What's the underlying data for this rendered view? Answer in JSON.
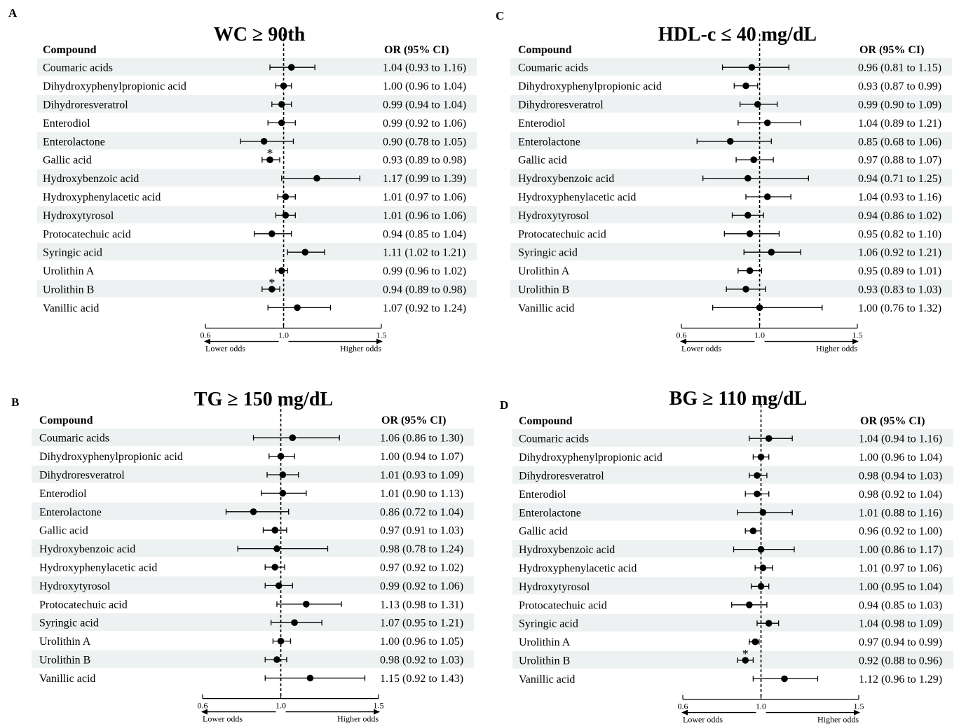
{
  "compound_header": "Compound",
  "or_header": "OR (95% CI)",
  "axis": {
    "ticks": [
      "0.6",
      "1.0",
      "1.5"
    ],
    "tick_values": [
      0.6,
      1.0,
      1.5
    ],
    "reference": 1.0,
    "lower_label": "Lower odds",
    "higher_label": "Higher odds"
  },
  "colors": {
    "stripe": "#eef1f1",
    "marker": "#000000"
  },
  "chart_data": [
    {
      "type": "forest",
      "panel_letter": "A",
      "title": "WC ≥ 90th",
      "xlim": [
        0.6,
        1.5
      ],
      "rows": [
        {
          "label": "Coumaric acids",
          "or": 1.04,
          "lo": 0.93,
          "hi": 1.16,
          "ci_text": "1.04 (0.93 to 1.16)",
          "significant": false
        },
        {
          "label": "Dihydroxyphenylpropionic acid",
          "or": 1.0,
          "lo": 0.96,
          "hi": 1.04,
          "ci_text": "1.00 (0.96 to 1.04)",
          "significant": false
        },
        {
          "label": "Dihydroresveratrol",
          "or": 0.99,
          "lo": 0.94,
          "hi": 1.04,
          "ci_text": "0.99 (0.94 to 1.04)",
          "significant": false
        },
        {
          "label": "Enterodiol",
          "or": 0.99,
          "lo": 0.92,
          "hi": 1.06,
          "ci_text": "0.99 (0.92 to 1.06)",
          "significant": false
        },
        {
          "label": "Enterolactone",
          "or": 0.9,
          "lo": 0.78,
          "hi": 1.05,
          "ci_text": "0.90 (0.78 to 1.05)",
          "significant": false
        },
        {
          "label": "Gallic acid",
          "or": 0.93,
          "lo": 0.89,
          "hi": 0.98,
          "ci_text": "0.93 (0.89 to 0.98)",
          "significant": true
        },
        {
          "label": "Hydroxybenzoic acid",
          "or": 1.17,
          "lo": 0.99,
          "hi": 1.39,
          "ci_text": "1.17 (0.99 to 1.39)",
          "significant": false
        },
        {
          "label": "Hydroxyphenylacetic acid",
          "or": 1.01,
          "lo": 0.97,
          "hi": 1.06,
          "ci_text": "1.01 (0.97 to 1.06)",
          "significant": false
        },
        {
          "label": "Hydroxytyrosol",
          "or": 1.01,
          "lo": 0.96,
          "hi": 1.06,
          "ci_text": "1.01 (0.96 to 1.06)",
          "significant": false
        },
        {
          "label": "Protocatechuic acid",
          "or": 0.94,
          "lo": 0.85,
          "hi": 1.04,
          "ci_text": "0.94 (0.85 to 1.04)",
          "significant": false
        },
        {
          "label": "Syringic acid",
          "or": 1.11,
          "lo": 1.02,
          "hi": 1.21,
          "ci_text": "1.11 (1.02 to 1.21)",
          "significant": false
        },
        {
          "label": "Urolithin A",
          "or": 0.99,
          "lo": 0.96,
          "hi": 1.02,
          "ci_text": "0.99 (0.96 to 1.02)",
          "significant": false
        },
        {
          "label": "Urolithin B",
          "or": 0.94,
          "lo": 0.89,
          "hi": 0.98,
          "ci_text": "0.94 (0.89 to 0.98)",
          "significant": true
        },
        {
          "label": "Vanillic acid",
          "or": 1.07,
          "lo": 0.92,
          "hi": 1.24,
          "ci_text": "1.07 (0.92 to 1.24)",
          "significant": false
        }
      ]
    },
    {
      "type": "forest",
      "panel_letter": "B",
      "title": "TG ≥ 150 mg/dL",
      "xlim": [
        0.6,
        1.5
      ],
      "rows": [
        {
          "label": "Coumaric acids",
          "or": 1.06,
          "lo": 0.86,
          "hi": 1.3,
          "ci_text": "1.06 (0.86 to 1.30)",
          "significant": false
        },
        {
          "label": "Dihydroxyphenylpropionic acid",
          "or": 1.0,
          "lo": 0.94,
          "hi": 1.07,
          "ci_text": "1.00 (0.94 to 1.07)",
          "significant": false
        },
        {
          "label": "Dihydroresveratrol",
          "or": 1.01,
          "lo": 0.93,
          "hi": 1.09,
          "ci_text": "1.01 (0.93 to 1.09)",
          "significant": false
        },
        {
          "label": "Enterodiol",
          "or": 1.01,
          "lo": 0.9,
          "hi": 1.13,
          "ci_text": "1.01 (0.90 to 1.13)",
          "significant": false
        },
        {
          "label": "Enterolactone",
          "or": 0.86,
          "lo": 0.72,
          "hi": 1.04,
          "ci_text": "0.86 (0.72 to 1.04)",
          "significant": false
        },
        {
          "label": "Gallic acid",
          "or": 0.97,
          "lo": 0.91,
          "hi": 1.03,
          "ci_text": "0.97 (0.91 to 1.03)",
          "significant": false
        },
        {
          "label": "Hydroxybenzoic acid",
          "or": 0.98,
          "lo": 0.78,
          "hi": 1.24,
          "ci_text": "0.98 (0.78 to 1.24)",
          "significant": false
        },
        {
          "label": "Hydroxyphenylacetic acid",
          "or": 0.97,
          "lo": 0.92,
          "hi": 1.02,
          "ci_text": "0.97 (0.92 to 1.02)",
          "significant": false
        },
        {
          "label": "Hydroxytyrosol",
          "or": 0.99,
          "lo": 0.92,
          "hi": 1.06,
          "ci_text": "0.99 (0.92 to 1.06)",
          "significant": false
        },
        {
          "label": "Protocatechuic acid",
          "or": 1.13,
          "lo": 0.98,
          "hi": 1.31,
          "ci_text": "1.13 (0.98 to 1.31)",
          "significant": false
        },
        {
          "label": "Syringic acid",
          "or": 1.07,
          "lo": 0.95,
          "hi": 1.21,
          "ci_text": "1.07 (0.95 to 1.21)",
          "significant": false
        },
        {
          "label": "Urolithin A",
          "or": 1.0,
          "lo": 0.96,
          "hi": 1.05,
          "ci_text": "1.00 (0.96 to 1.05)",
          "significant": false
        },
        {
          "label": "Urolithin B",
          "or": 0.98,
          "lo": 0.92,
          "hi": 1.03,
          "ci_text": "0.98 (0.92 to 1.03)",
          "significant": false
        },
        {
          "label": "Vanillic acid",
          "or": 1.15,
          "lo": 0.92,
          "hi": 1.43,
          "ci_text": "1.15 (0.92 to 1.43)",
          "significant": false
        }
      ]
    },
    {
      "type": "forest",
      "panel_letter": "C",
      "title": "HDL-c ≤ 40 mg/dL",
      "xlim": [
        0.6,
        1.5
      ],
      "rows": [
        {
          "label": "Coumaric acids",
          "or": 0.96,
          "lo": 0.81,
          "hi": 1.15,
          "ci_text": "0.96 (0.81 to 1.15)",
          "significant": false
        },
        {
          "label": "Dihydroxyphenylpropionic acid",
          "or": 0.93,
          "lo": 0.87,
          "hi": 0.99,
          "ci_text": "0.93 (0.87 to 0.99)",
          "significant": false
        },
        {
          "label": "Dihydroresveratrol",
          "or": 0.99,
          "lo": 0.9,
          "hi": 1.09,
          "ci_text": "0.99 (0.90 to 1.09)",
          "significant": false
        },
        {
          "label": "Enterodiol",
          "or": 1.04,
          "lo": 0.89,
          "hi": 1.21,
          "ci_text": "1.04 (0.89 to 1.21)",
          "significant": false
        },
        {
          "label": "Enterolactone",
          "or": 0.85,
          "lo": 0.68,
          "hi": 1.06,
          "ci_text": "0.85 (0.68 to 1.06)",
          "significant": false
        },
        {
          "label": "Gallic acid",
          "or": 0.97,
          "lo": 0.88,
          "hi": 1.07,
          "ci_text": "0.97 (0.88 to 1.07)",
          "significant": false
        },
        {
          "label": "Hydroxybenzoic acid",
          "or": 0.94,
          "lo": 0.71,
          "hi": 1.25,
          "ci_text": "0.94 (0.71 to 1.25)",
          "significant": false
        },
        {
          "label": "Hydroxyphenylacetic acid",
          "or": 1.04,
          "lo": 0.93,
          "hi": 1.16,
          "ci_text": "1.04 (0.93 to 1.16)",
          "significant": false
        },
        {
          "label": "Hydroxytyrosol",
          "or": 0.94,
          "lo": 0.86,
          "hi": 1.02,
          "ci_text": "0.94 (0.86 to 1.02)",
          "significant": false
        },
        {
          "label": "Protocatechuic acid",
          "or": 0.95,
          "lo": 0.82,
          "hi": 1.1,
          "ci_text": "0.95 (0.82 to 1.10)",
          "significant": false
        },
        {
          "label": "Syringic acid",
          "or": 1.06,
          "lo": 0.92,
          "hi": 1.21,
          "ci_text": "1.06 (0.92 to 1.21)",
          "significant": false
        },
        {
          "label": "Urolithin A",
          "or": 0.95,
          "lo": 0.89,
          "hi": 1.01,
          "ci_text": "0.95 (0.89 to 1.01)",
          "significant": false
        },
        {
          "label": "Urolithin B",
          "or": 0.93,
          "lo": 0.83,
          "hi": 1.03,
          "ci_text": "0.93 (0.83 to 1.03)",
          "significant": false
        },
        {
          "label": "Vanillic acid",
          "or": 1.0,
          "lo": 0.76,
          "hi": 1.32,
          "ci_text": "1.00 (0.76 to 1.32)",
          "significant": false
        }
      ]
    },
    {
      "type": "forest",
      "panel_letter": "D",
      "title": "BG ≥ 110 mg/dL",
      "xlim": [
        0.6,
        1.5
      ],
      "rows": [
        {
          "label": "Coumaric acids",
          "or": 1.04,
          "lo": 0.94,
          "hi": 1.16,
          "ci_text": "1.04 (0.94 to 1.16)",
          "significant": false
        },
        {
          "label": "Dihydroxyphenylpropionic acid",
          "or": 1.0,
          "lo": 0.96,
          "hi": 1.04,
          "ci_text": "1.00 (0.96 to 1.04)",
          "significant": false
        },
        {
          "label": "Dihydroresveratrol",
          "or": 0.98,
          "lo": 0.94,
          "hi": 1.03,
          "ci_text": "0.98 (0.94 to 1.03)",
          "significant": false
        },
        {
          "label": "Enterodiol",
          "or": 0.98,
          "lo": 0.92,
          "hi": 1.04,
          "ci_text": "0.98 (0.92 to 1.04)",
          "significant": false
        },
        {
          "label": "Enterolactone",
          "or": 1.01,
          "lo": 0.88,
          "hi": 1.16,
          "ci_text": "1.01 (0.88 to 1.16)",
          "significant": false
        },
        {
          "label": "Gallic acid",
          "or": 0.96,
          "lo": 0.92,
          "hi": 1.0,
          "ci_text": "0.96 (0.92 to 1.00)",
          "significant": false
        },
        {
          "label": "Hydroxybenzoic acid",
          "or": 1.0,
          "lo": 0.86,
          "hi": 1.17,
          "ci_text": "1.00 (0.86 to 1.17)",
          "significant": false
        },
        {
          "label": "Hydroxyphenylacetic acid",
          "or": 1.01,
          "lo": 0.97,
          "hi": 1.06,
          "ci_text": "1.01 (0.97 to 1.06)",
          "significant": false
        },
        {
          "label": "Hydroxytyrosol",
          "or": 1.0,
          "lo": 0.95,
          "hi": 1.04,
          "ci_text": "1.00 (0.95 to 1.04)",
          "significant": false
        },
        {
          "label": "Protocatechuic acid",
          "or": 0.94,
          "lo": 0.85,
          "hi": 1.03,
          "ci_text": "0.94 (0.85 to 1.03)",
          "significant": false
        },
        {
          "label": "Syringic acid",
          "or": 1.04,
          "lo": 0.98,
          "hi": 1.09,
          "ci_text": "1.04 (0.98 to 1.09)",
          "significant": false
        },
        {
          "label": "Urolithin A",
          "or": 0.97,
          "lo": 0.94,
          "hi": 0.99,
          "ci_text": "0.97 (0.94 to 0.99)",
          "significant": false
        },
        {
          "label": "Urolithin B",
          "or": 0.92,
          "lo": 0.88,
          "hi": 0.96,
          "ci_text": "0.92 (0.88 to 0.96)",
          "significant": true
        },
        {
          "label": "Vanillic acid",
          "or": 1.12,
          "lo": 0.96,
          "hi": 1.29,
          "ci_text": "1.12 (0.96 to 1.29)",
          "significant": false
        }
      ]
    }
  ]
}
